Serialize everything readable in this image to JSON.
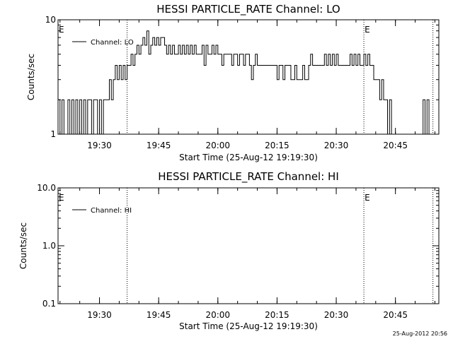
{
  "footer": {
    "timestamp": "25-Aug-2012 20:56"
  },
  "colors": {
    "background": "#ffffff",
    "ink": "#000000"
  },
  "chart_data": [
    {
      "type": "line",
      "title": "HESSI PARTICLE_RATE Channel: LO",
      "xlabel": "Start Time (25-Aug-12 19:19:30)",
      "ylabel": "Counts/sec",
      "x_scale": "time",
      "y_scale": "log",
      "xlim": [
        "19:19:30",
        "20:56:00"
      ],
      "ylim": [
        1,
        10
      ],
      "x_ticks": [
        "19:30",
        "19:45",
        "20:00",
        "20:15",
        "20:30",
        "20:45"
      ],
      "y_ticks": [
        "1",
        "10"
      ],
      "legend": {
        "entries": [
          "Channel: LO"
        ],
        "placement": "top-left"
      },
      "markers": {
        "dotted_lines": [
          "19:37:00",
          "20:37:00",
          "20:54:30"
        ],
        "labels": [
          {
            "text": "E",
            "x": "19:19:30"
          },
          {
            "text": "E",
            "x": "20:37:00"
          }
        ]
      },
      "series": [
        {
          "name": "Channel: LO",
          "x": [
            "19:19:30",
            "19:20:00",
            "19:20:30",
            "19:21:00",
            "19:21:30",
            "19:22:00",
            "19:22:30",
            "19:23:00",
            "19:23:30",
            "19:24:00",
            "19:24:30",
            "19:25:00",
            "19:25:30",
            "19:26:00",
            "19:26:30",
            "19:27:00",
            "19:27:30",
            "19:28:00",
            "19:28:30",
            "19:29:00",
            "19:29:30",
            "19:30:00",
            "19:30:30",
            "19:31:00",
            "19:31:30",
            "19:32:00",
            "19:32:30",
            "19:33:00",
            "19:33:30",
            "19:34:00",
            "19:34:30",
            "19:35:00",
            "19:35:30",
            "19:36:00",
            "19:36:30",
            "19:37:00",
            "19:37:30",
            "19:38:00",
            "19:38:30",
            "19:39:00",
            "19:39:30",
            "19:40:00",
            "19:40:30",
            "19:41:00",
            "19:41:30",
            "19:42:00",
            "19:42:30",
            "19:43:00",
            "19:43:30",
            "19:44:00",
            "19:44:30",
            "19:45:00",
            "19:45:30",
            "19:46:00",
            "19:46:30",
            "19:47:00",
            "19:47:30",
            "19:48:00",
            "19:48:30",
            "19:49:00",
            "19:49:30",
            "19:50:00",
            "19:50:30",
            "19:51:00",
            "19:51:30",
            "19:52:00",
            "19:52:30",
            "19:53:00",
            "19:53:30",
            "19:54:00",
            "19:54:30",
            "19:55:00",
            "19:55:30",
            "19:56:00",
            "19:56:30",
            "19:57:00",
            "19:57:30",
            "19:58:00",
            "19:58:30",
            "19:59:00",
            "19:59:30",
            "20:00:00",
            "20:00:30",
            "20:01:00",
            "20:01:30",
            "20:02:00",
            "20:02:30",
            "20:03:00",
            "20:03:30",
            "20:04:00",
            "20:04:30",
            "20:05:00",
            "20:05:30",
            "20:06:00",
            "20:06:30",
            "20:07:00",
            "20:07:30",
            "20:08:00",
            "20:08:30",
            "20:09:00",
            "20:09:30",
            "20:10:00",
            "20:10:30",
            "20:11:00",
            "20:11:30",
            "20:12:00",
            "20:12:30",
            "20:13:00",
            "20:13:30",
            "20:14:00",
            "20:14:30",
            "20:15:00",
            "20:15:30",
            "20:16:00",
            "20:16:30",
            "20:17:00",
            "20:17:30",
            "20:18:00",
            "20:18:30",
            "20:19:00",
            "20:19:30",
            "20:20:00",
            "20:20:30",
            "20:21:00",
            "20:21:30",
            "20:22:00",
            "20:22:30",
            "20:23:00",
            "20:23:30",
            "20:24:00",
            "20:24:30",
            "20:25:00",
            "20:25:30",
            "20:26:00",
            "20:26:30",
            "20:27:00",
            "20:27:30",
            "20:28:00",
            "20:28:30",
            "20:29:00",
            "20:29:30",
            "20:30:00",
            "20:30:30",
            "20:31:00",
            "20:31:30",
            "20:32:00",
            "20:32:30",
            "20:33:00",
            "20:33:30",
            "20:34:00",
            "20:34:30",
            "20:35:00",
            "20:35:30",
            "20:36:00",
            "20:36:30",
            "20:37:00",
            "20:37:30",
            "20:38:00",
            "20:38:30",
            "20:39:00",
            "20:39:30",
            "20:40:00",
            "20:40:30",
            "20:41:00",
            "20:41:30",
            "20:42:00",
            "20:42:30",
            "20:43:00",
            "20:43:30",
            "20:44:00",
            "20:44:30",
            "20:45:00",
            "20:45:30",
            "20:46:00",
            "20:46:30",
            "20:47:00",
            "20:47:30",
            "20:48:00",
            "20:48:30",
            "20:49:00",
            "20:49:30",
            "20:50:00",
            "20:50:30",
            "20:51:00",
            "20:51:30",
            "20:52:00",
            "20:52:30",
            "20:53:00",
            "20:53:30",
            "20:54:00",
            "20:54:30",
            "20:55:00",
            "20:55:30",
            "20:56:00"
          ],
          "y": [
            2,
            1,
            2,
            1,
            1,
            2,
            1,
            2,
            1,
            2,
            1,
            2,
            1,
            2,
            1,
            2,
            2,
            1,
            2,
            2,
            1,
            2,
            1,
            2,
            2,
            2,
            3,
            2,
            3,
            4,
            3,
            4,
            3,
            4,
            3,
            4,
            4,
            5,
            4,
            5,
            6,
            5,
            6,
            7,
            6,
            8,
            5,
            6,
            7,
            6,
            7,
            6,
            7,
            7,
            6,
            5,
            6,
            5,
            6,
            5,
            5,
            6,
            5,
            6,
            5,
            6,
            5,
            6,
            5,
            6,
            5,
            5,
            5,
            6,
            4,
            6,
            5,
            5,
            6,
            5,
            6,
            5,
            5,
            4,
            5,
            5,
            5,
            5,
            4,
            5,
            5,
            4,
            5,
            5,
            4,
            5,
            5,
            4,
            3,
            4,
            5,
            4,
            4,
            4,
            4,
            4,
            4,
            4,
            4,
            4,
            4,
            3,
            4,
            4,
            3,
            4,
            4,
            4,
            3,
            3,
            4,
            3,
            3,
            3,
            4,
            3,
            3,
            4,
            5,
            4,
            4,
            4,
            4,
            4,
            4,
            5,
            4,
            5,
            4,
            5,
            4,
            5,
            4,
            4,
            4,
            4,
            4,
            4,
            5,
            4,
            5,
            4,
            5,
            4,
            4,
            5,
            4,
            5,
            4,
            4,
            3,
            3,
            3,
            2,
            3,
            2,
            2,
            1,
            2,
            1,
            1,
            1,
            1,
            1,
            1,
            1,
            1,
            1,
            1,
            1,
            1,
            1,
            1,
            1,
            1,
            2,
            1,
            2,
            1,
            1,
            1,
            1,
            1,
            1
          ]
        }
      ]
    },
    {
      "type": "line",
      "title": "HESSI PARTICLE_RATE Channel: HI",
      "xlabel": "Start Time (25-Aug-12 19:19:30)",
      "ylabel": "Counts/sec",
      "x_scale": "time",
      "y_scale": "log",
      "xlim": [
        "19:19:30",
        "20:56:00"
      ],
      "ylim": [
        0.1,
        10
      ],
      "x_ticks": [
        "19:30",
        "19:45",
        "20:00",
        "20:15",
        "20:30",
        "20:45"
      ],
      "y_ticks": [
        "0.1",
        "1.0",
        "10.0"
      ],
      "legend": {
        "entries": [
          "Channel: HI"
        ],
        "placement": "top-left"
      },
      "markers": {
        "dotted_lines": [
          "19:37:00",
          "20:37:00",
          "20:54:30"
        ],
        "labels": [
          {
            "text": "E",
            "x": "19:19:30"
          },
          {
            "text": "E",
            "x": "20:37:00"
          }
        ]
      },
      "series": [
        {
          "name": "Channel: HI",
          "x": [],
          "y": []
        }
      ]
    }
  ]
}
